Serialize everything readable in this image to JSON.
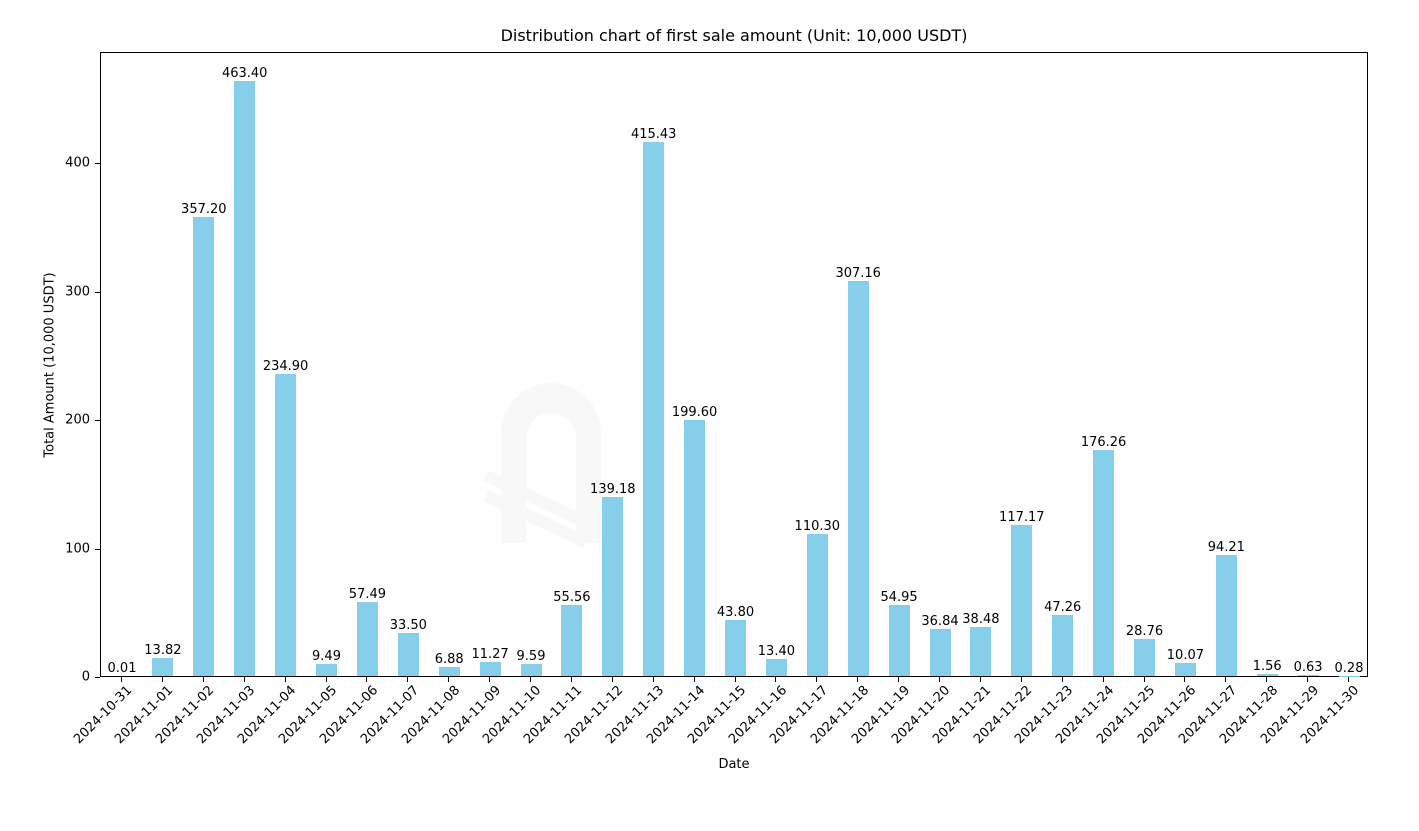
{
  "chart_data": {
    "type": "bar",
    "title": "Distribution chart of first sale amount (Unit: 10,000 USDT)",
    "xlabel": "Date",
    "ylabel": "Total Amount (10,000 USDT)",
    "ylim": [
      0,
      486
    ],
    "yticks": [
      0,
      100,
      200,
      300,
      400
    ],
    "grid": false,
    "legend": null,
    "bar_color": "#87ceeb",
    "categories": [
      "2024-10-31",
      "2024-11-01",
      "2024-11-02",
      "2024-11-03",
      "2024-11-04",
      "2024-11-05",
      "2024-11-06",
      "2024-11-07",
      "2024-11-08",
      "2024-11-09",
      "2024-11-10",
      "2024-11-11",
      "2024-11-12",
      "2024-11-13",
      "2024-11-14",
      "2024-11-15",
      "2024-11-16",
      "2024-11-17",
      "2024-11-18",
      "2024-11-19",
      "2024-11-20",
      "2024-11-21",
      "2024-11-22",
      "2024-11-23",
      "2024-11-24",
      "2024-11-25",
      "2024-11-26",
      "2024-11-27",
      "2024-11-28",
      "2024-11-29",
      "2024-11-30"
    ],
    "values": [
      0.01,
      13.82,
      357.2,
      463.4,
      234.9,
      9.49,
      57.49,
      33.5,
      6.88,
      11.27,
      9.59,
      55.56,
      139.18,
      415.43,
      199.6,
      43.8,
      13.4,
      110.3,
      307.16,
      54.95,
      36.84,
      38.48,
      117.17,
      47.26,
      176.26,
      28.76,
      10.07,
      94.21,
      1.56,
      0.63,
      0.28
    ],
    "value_labels": [
      "0.01",
      "13.82",
      "357.20",
      "463.40",
      "234.90",
      "9.49",
      "57.49",
      "33.50",
      "6.88",
      "11.27",
      "9.59",
      "55.56",
      "139.18",
      "415.43",
      "199.60",
      "43.80",
      "13.40",
      "110.30",
      "307.16",
      "54.95",
      "36.84",
      "38.48",
      "117.17",
      "47.26",
      "176.26",
      "28.76",
      "10.07",
      "94.21",
      "1.56",
      "0.63",
      "0.28"
    ]
  },
  "watermark": {
    "text": "PANews"
  }
}
